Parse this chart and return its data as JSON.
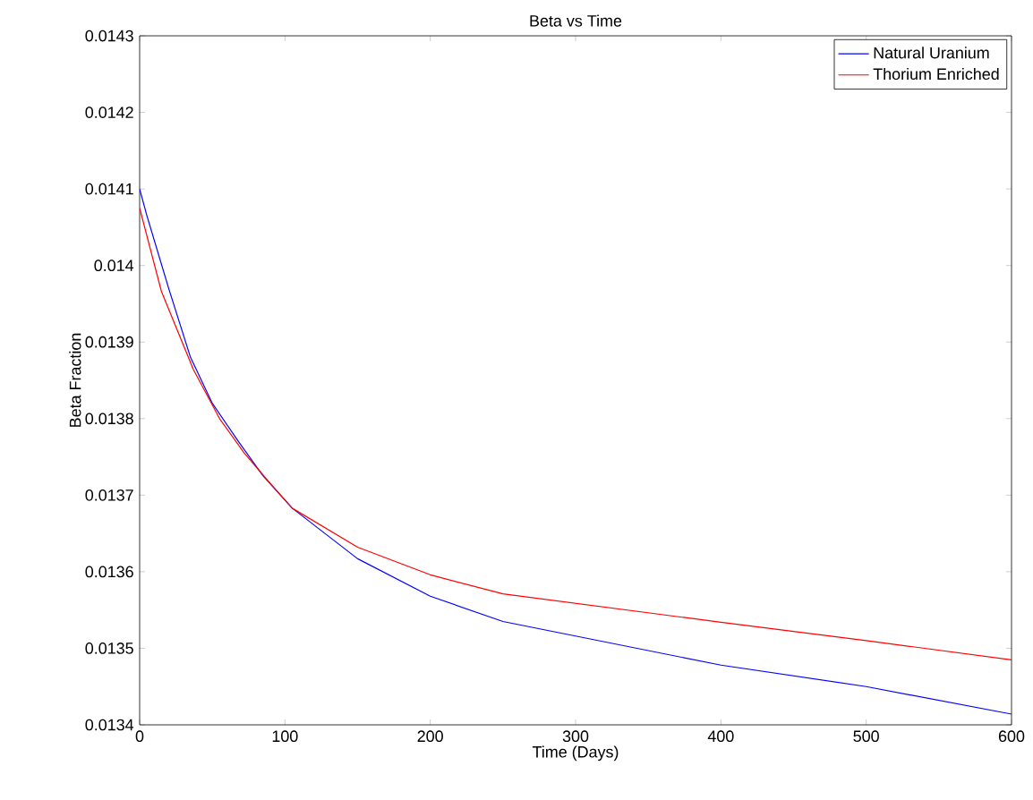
{
  "chart_data": {
    "type": "line",
    "title": "Beta vs Time",
    "xlabel": "Time (Days)",
    "ylabel": "Beta Fraction",
    "xlim": [
      0,
      600
    ],
    "ylim": [
      0.0134,
      0.0143
    ],
    "xticks": [
      0,
      100,
      200,
      300,
      400,
      500,
      600
    ],
    "yticks": [
      0.0134,
      0.0135,
      0.0136,
      0.0137,
      0.0138,
      0.0139,
      0.014,
      0.0141,
      0.0142,
      0.0143
    ],
    "grid": false,
    "legend": "top right",
    "marker": "none",
    "line_style": "solid",
    "series": [
      {
        "name": "Natural Uranium",
        "color": "#0000ff",
        "x": [
          0,
          5,
          20,
          35,
          50,
          68,
          85,
          105,
          150,
          200,
          250,
          400,
          500,
          600
        ],
        "values": [
          0.0141,
          0.014065,
          0.01397,
          0.01388,
          0.01382,
          0.01377,
          0.013725,
          0.013683,
          0.013617,
          0.013568,
          0.013535,
          0.013478,
          0.01345,
          0.013414
        ]
      },
      {
        "name": "Thorium Enriched",
        "color": "#ff0000",
        "x": [
          0,
          15,
          37,
          55,
          72,
          90,
          105,
          150,
          200,
          250,
          400,
          500,
          600
        ],
        "values": [
          0.014075,
          0.013966,
          0.013864,
          0.0138,
          0.013755,
          0.013715,
          0.013683,
          0.013632,
          0.013596,
          0.013571,
          0.013534,
          0.01351,
          0.013485
        ]
      }
    ]
  }
}
